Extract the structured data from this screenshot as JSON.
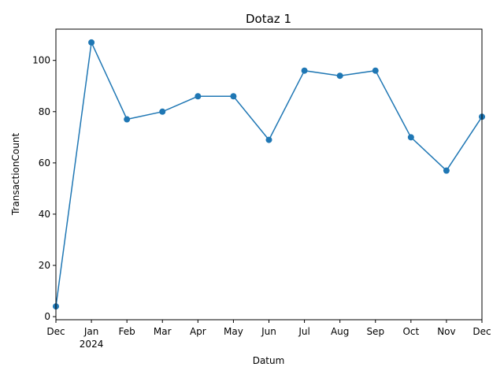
{
  "chart_data": {
    "type": "line",
    "title": "Dotaz 1",
    "xlabel": "Datum",
    "ylabel": "TransactionCount",
    "x": [
      "2023-12",
      "2024-01",
      "2024-02",
      "2024-03",
      "2024-04",
      "2024-05",
      "2024-06",
      "2024-07",
      "2024-08",
      "2024-09",
      "2024-10",
      "2024-11",
      "2024-12"
    ],
    "x_tick_labels": [
      {
        "label": "Dec",
        "sub": ""
      },
      {
        "label": "Jan",
        "sub": "2024"
      },
      {
        "label": "Feb",
        "sub": ""
      },
      {
        "label": "Mar",
        "sub": ""
      },
      {
        "label": "Apr",
        "sub": ""
      },
      {
        "label": "May",
        "sub": ""
      },
      {
        "label": "Jun",
        "sub": ""
      },
      {
        "label": "Jul",
        "sub": ""
      },
      {
        "label": "Aug",
        "sub": ""
      },
      {
        "label": "Sep",
        "sub": ""
      },
      {
        "label": "Oct",
        "sub": ""
      },
      {
        "label": "Nov",
        "sub": ""
      },
      {
        "label": "Dec",
        "sub": ""
      }
    ],
    "series": [
      {
        "values": [
          4,
          107,
          77,
          80,
          86,
          86,
          69,
          96,
          94,
          96,
          70,
          57,
          78
        ]
      }
    ],
    "y_ticks": [
      0,
      20,
      40,
      60,
      80,
      100
    ],
    "ylim": [
      -1.2,
      112.2
    ],
    "grid": false,
    "legend": "none",
    "colors": {
      "line": "#1f77b4",
      "axes": "#000000",
      "background": "#ffffff"
    }
  }
}
